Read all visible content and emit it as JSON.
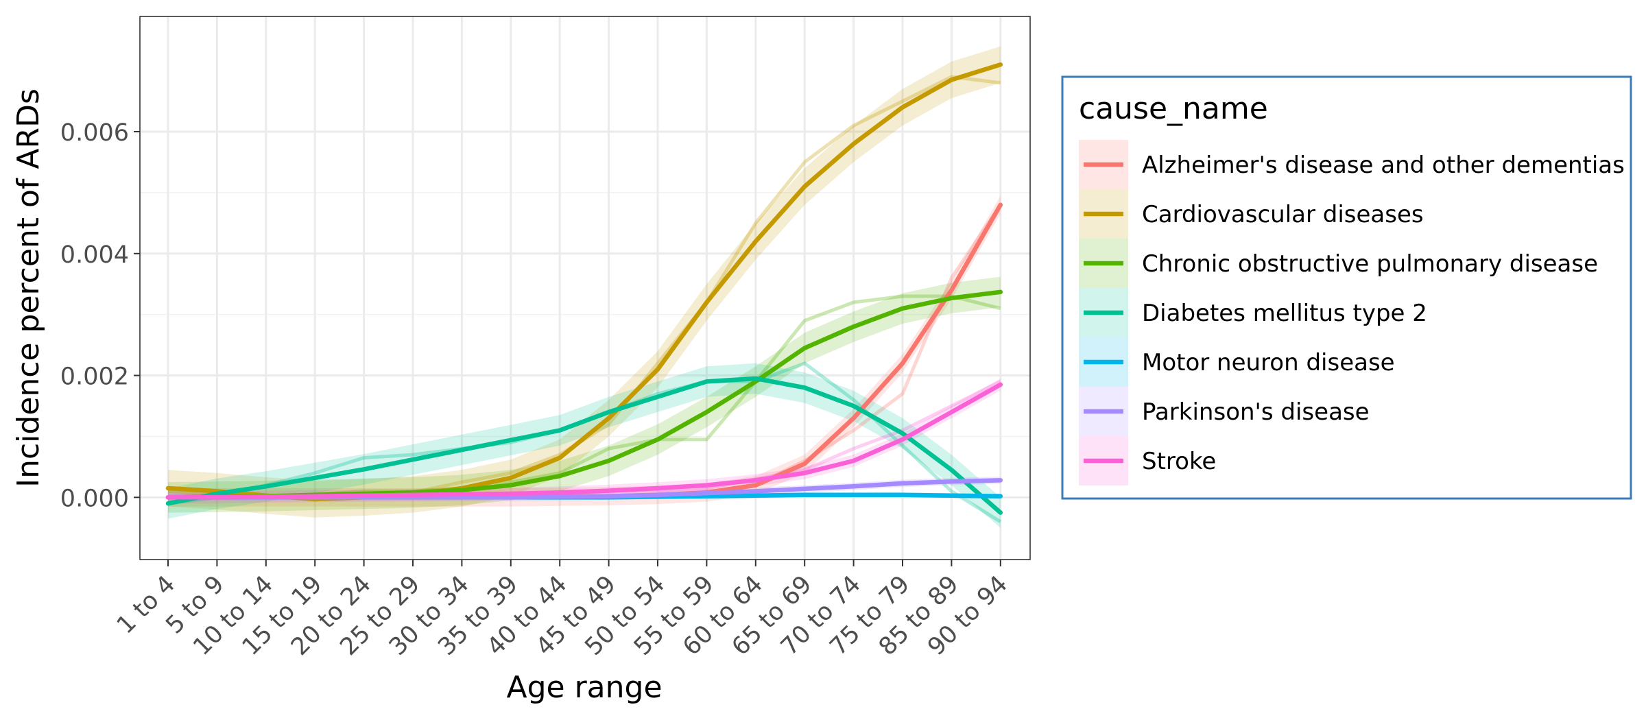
{
  "chart_data": {
    "type": "line",
    "xlabel": "Age range",
    "ylabel": "Incidence percent of ARDs",
    "categories": [
      "1 to 4",
      "5 to 9",
      "10 to 14",
      "15 to 19",
      "20 to 24",
      "25 to 29",
      "30 to 34",
      "35 to 39",
      "40 to 44",
      "45 to 49",
      "50 to 54",
      "55 to 59",
      "60 to 64",
      "65 to 69",
      "70 to 74",
      "75 to 79",
      "85 to 89",
      "90 to 94"
    ],
    "yticks": [
      0.0,
      0.002,
      0.004,
      0.006
    ],
    "ytick_labels": [
      "0.000",
      "0.002",
      "0.004",
      "0.006"
    ],
    "ylim": [
      -0.00102,
      0.00789
    ],
    "grid": true,
    "legend": {
      "title": "cause_name",
      "position": "right"
    },
    "series": [
      {
        "name": "Alzheimer's disease and other dementias",
        "color": "#F8766D",
        "values": [
          0.0,
          0.0,
          0.0,
          0.0,
          0.0,
          0.0,
          0.0,
          0.0,
          1e-05,
          2e-05,
          4e-05,
          8e-05,
          0.0002,
          0.00055,
          0.0013,
          0.0022,
          0.0034,
          0.0048
        ],
        "raw": [
          0.0,
          0.0,
          0.0,
          0.0,
          0.0,
          0.0,
          0.0,
          0.0,
          0.0,
          0.0,
          5e-05,
          8e-05,
          0.0002,
          0.0006,
          0.0011,
          0.0017,
          0.0036,
          0.0048
        ],
        "band": 0.00015
      },
      {
        "name": "Cardiovascular diseases",
        "color": "#C49A00",
        "values": [
          0.00015,
          0.0001,
          3e-05,
          -3e-05,
          0.0,
          5e-05,
          0.00015,
          0.00032,
          0.00065,
          0.0013,
          0.0021,
          0.0032,
          0.0042,
          0.0051,
          0.0058,
          0.0064,
          0.00685,
          0.0071
        ],
        "raw": [
          0.0001,
          5e-05,
          0.0,
          0.0,
          2e-05,
          8e-05,
          0.00025,
          0.0004,
          0.0007,
          0.0012,
          0.0022,
          0.0032,
          0.0045,
          0.0055,
          0.0061,
          0.0065,
          0.0069,
          0.0068
        ],
        "band": 0.0003
      },
      {
        "name": "Chronic obstructive pulmonary disease",
        "color": "#53B400",
        "values": [
          0.0,
          1e-05,
          2e-05,
          4e-05,
          6e-05,
          8e-05,
          0.00012,
          0.0002,
          0.00035,
          0.0006,
          0.00095,
          0.0014,
          0.0019,
          0.00245,
          0.0028,
          0.0031,
          0.00327,
          0.00337
        ],
        "raw": [
          0.0,
          0.0,
          0.0,
          5e-05,
          0.0001,
          0.0001,
          0.00015,
          0.00025,
          0.0004,
          0.0008,
          0.00095,
          0.00095,
          0.0019,
          0.0029,
          0.0032,
          0.0033,
          0.0033,
          0.0031
        ],
        "band": 0.00025
      },
      {
        "name": "Diabetes mellitus type 2",
        "color": "#00C094",
        "values": [
          -0.0001,
          6e-05,
          0.00018,
          0.00032,
          0.00046,
          0.00062,
          0.00078,
          0.00094,
          0.0011,
          0.0014,
          0.00165,
          0.0019,
          0.00195,
          0.0018,
          0.0015,
          0.00105,
          0.00045,
          -0.00025
        ],
        "raw": [
          -0.0001,
          0.0,
          0.0002,
          0.0004,
          0.00065,
          0.0007,
          0.0008,
          0.0009,
          0.0011,
          0.0014,
          0.0017,
          0.0019,
          0.0019,
          0.0022,
          0.0016,
          0.00085,
          0.0001,
          -0.0004
        ],
        "band": 0.00025
      },
      {
        "name": "Motor neuron disease",
        "color": "#00B6EB",
        "values": [
          0.0,
          0.0,
          0.0,
          0.0,
          0.0,
          0.0,
          0.0,
          0.0,
          0.0,
          0.0,
          1e-05,
          2e-05,
          3e-05,
          4e-05,
          4e-05,
          4e-05,
          3e-05,
          2e-05
        ],
        "raw": [
          0.0,
          0.0,
          0.0,
          0.0,
          0.0,
          0.0,
          0.0,
          0.0,
          0.0,
          0.0,
          1e-05,
          2e-05,
          3e-05,
          4e-05,
          4e-05,
          4e-05,
          3e-05,
          2e-05
        ],
        "band": 4e-05
      },
      {
        "name": "Parkinson's disease",
        "color": "#A58AFF",
        "values": [
          0.0,
          0.0,
          0.0,
          0.0,
          0.0,
          0.0,
          0.0,
          0.0,
          1e-05,
          2e-05,
          4e-05,
          7e-05,
          0.0001,
          0.00014,
          0.00018,
          0.00023,
          0.00026,
          0.00028
        ],
        "raw": [
          0.0,
          0.0,
          0.0,
          0.0,
          0.0,
          0.0,
          0.0,
          0.0,
          1e-05,
          2e-05,
          4e-05,
          7e-05,
          0.0001,
          0.00014,
          0.00018,
          0.00023,
          0.00026,
          0.00028
        ],
        "band": 6e-05
      },
      {
        "name": "Stroke",
        "color": "#FB61D7",
        "values": [
          0.0,
          0.0,
          1e-05,
          2e-05,
          3e-05,
          4e-05,
          5e-05,
          6e-05,
          8e-05,
          0.00011,
          0.00015,
          0.0002,
          0.00028,
          0.0004,
          0.0006,
          0.00095,
          0.0014,
          0.00185
        ],
        "raw": [
          0.0,
          0.0,
          0.0,
          0.0,
          3e-05,
          5e-05,
          5e-05,
          5e-05,
          5e-05,
          0.0001,
          0.00012,
          0.00015,
          0.0003,
          0.00045,
          0.0008,
          0.0011,
          0.0015,
          0.0019
        ],
        "band": 0.0001
      }
    ]
  }
}
